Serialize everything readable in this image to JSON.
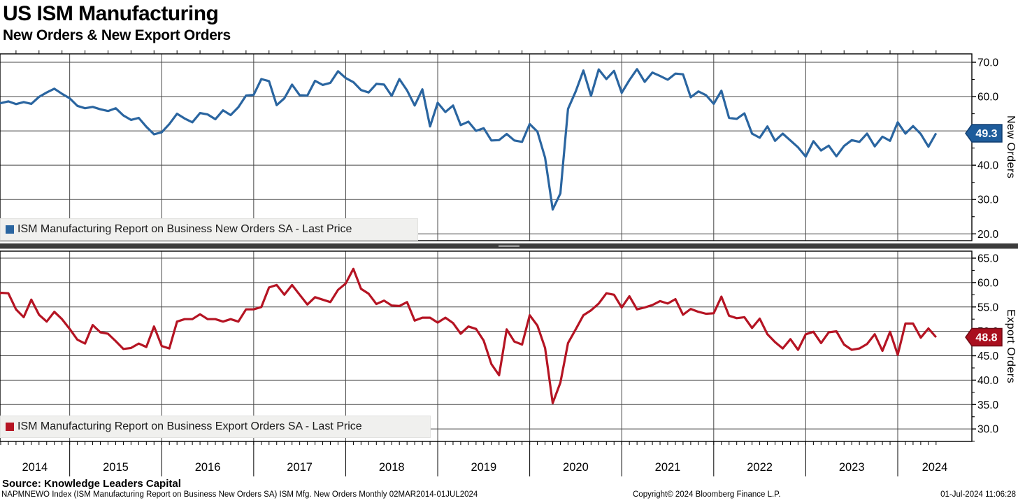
{
  "header": {
    "title": "US ISM Manufacturing",
    "subtitle": "New Orders & New Export Orders"
  },
  "x_axis": {
    "year_labels": [
      "2014",
      "2015",
      "2016",
      "2017",
      "2018",
      "2019",
      "2020",
      "2021",
      "2022",
      "2023",
      "2024"
    ]
  },
  "footer": {
    "source": "Source: Knowledge Leaders Capital",
    "security_info": "NAPMNEWO Index (ISM Manufacturing Report on Business New Orders SA) ISM Mfg. New Orders  Monthly 02MAR2014-01JUL2024",
    "copyright": "Copyright© 2024 Bloomberg Finance L.P.",
    "timestamp": "01-Jul-2024 11:06:28"
  },
  "chart_data": [
    {
      "type": "line",
      "name": "New Orders",
      "legend": "ISM Manufacturing Report on Business New Orders SA - Last Price",
      "axis_title": "New Orders",
      "color": "#2a65a0",
      "badge_color": "#1e5c9b",
      "badge_border": "#123f70",
      "last_price": 49.3,
      "last_price_label": "49.3",
      "frequency": "monthly",
      "x_start": "2014-03",
      "x_end": "2024-06",
      "ylim": [
        17.9,
        72.6
      ],
      "y_ticks": [
        "70.0",
        "60.0",
        "50.0",
        "40.0",
        "30.0",
        "20.0"
      ],
      "grid": true,
      "legend_position": "bottom-left-inset",
      "values": [
        58.9,
        58.1,
        58.6,
        57.8,
        58.4,
        57.9,
        59.9,
        61.2,
        62.3,
        60.8,
        59.5,
        57.3,
        56.6,
        57.0,
        56.3,
        55.8,
        56.6,
        54.5,
        53.2,
        53.8,
        51.2,
        49.0,
        49.6,
        52.0,
        55.0,
        53.6,
        52.5,
        55.2,
        54.8,
        53.4,
        56.0,
        54.6,
        56.9,
        60.3,
        60.5,
        65.1,
        64.5,
        57.5,
        59.5,
        63.5,
        60.4,
        60.3,
        64.6,
        63.4,
        64.0,
        67.4,
        65.4,
        64.2,
        61.9,
        61.2,
        63.7,
        63.5,
        60.2,
        65.1,
        61.8,
        57.4,
        62.1,
        51.3,
        58.2,
        55.5,
        57.4,
        51.7,
        52.7,
        50.0,
        50.8,
        47.2,
        47.3,
        49.1,
        47.2,
        46.8,
        52.0,
        49.8,
        42.2,
        27.1,
        31.8,
        56.4,
        61.5,
        67.6,
        60.2,
        67.9,
        65.1,
        67.5,
        61.1,
        64.8,
        68.0,
        64.3,
        67.0,
        66.0,
        64.9,
        66.7,
        66.5,
        59.8,
        61.5,
        60.4,
        57.9,
        61.7,
        53.8,
        53.5,
        55.1,
        49.2,
        48.0,
        51.3,
        47.1,
        49.2,
        47.2,
        45.2,
        42.5,
        47.0,
        44.3,
        45.7,
        42.6,
        45.6,
        47.3,
        46.8,
        49.2,
        45.5,
        48.3,
        47.1,
        52.5,
        49.2,
        51.4,
        49.1,
        45.4,
        49.3
      ]
    },
    {
      "type": "line",
      "name": "Export Orders",
      "legend": "ISM Manufacturing Report on Business Export Orders SA - Last Price",
      "axis_title": "Export Orders",
      "color": "#b51423",
      "badge_color": "#a90f1e",
      "badge_border": "#6f0a14",
      "last_price": 48.8,
      "last_price_label": "48.8",
      "frequency": "monthly",
      "x_start": "2014-03",
      "x_end": "2024-06",
      "ylim": [
        27.4,
        66.4
      ],
      "y_ticks": [
        "65.0",
        "60.0",
        "55.0",
        "50.0",
        "45.0",
        "40.0",
        "35.0",
        "30.0"
      ],
      "grid": true,
      "legend_position": "bottom-left-inset",
      "values": [
        56.0,
        57.9,
        57.8,
        54.5,
        52.9,
        56.5,
        53.4,
        52.0,
        54.0,
        52.5,
        50.5,
        48.3,
        47.5,
        51.3,
        49.8,
        49.5,
        48.0,
        46.4,
        46.6,
        47.5,
        46.8,
        51.0,
        47.0,
        46.5,
        52.0,
        52.5,
        52.5,
        53.5,
        52.5,
        52.5,
        52.0,
        52.5,
        52.0,
        54.5,
        54.5,
        55.0,
        59.0,
        59.5,
        57.5,
        59.5,
        57.5,
        55.5,
        57.0,
        56.5,
        56.0,
        58.5,
        59.8,
        62.8,
        58.7,
        57.7,
        55.6,
        56.3,
        55.3,
        55.2,
        56.0,
        52.2,
        52.8,
        52.8,
        51.8,
        52.8,
        51.7,
        49.5,
        51.0,
        50.5,
        48.1,
        43.3,
        41.0,
        50.4,
        47.9,
        47.3,
        53.3,
        51.2,
        46.6,
        35.3,
        39.5,
        47.6,
        50.4,
        53.3,
        54.3,
        55.7,
        57.8,
        57.5,
        54.9,
        57.2,
        54.5,
        54.9,
        55.4,
        56.2,
        55.7,
        56.6,
        53.4,
        54.6,
        54.0,
        53.6,
        53.7,
        57.1,
        53.2,
        52.7,
        52.9,
        50.7,
        52.6,
        49.4,
        47.8,
        46.5,
        48.4,
        46.2,
        49.4,
        49.9,
        47.6,
        49.8,
        50.0,
        47.3,
        46.2,
        46.5,
        47.4,
        49.4,
        46.0,
        49.9,
        45.2,
        51.6,
        51.6,
        48.7,
        50.6,
        48.8
      ]
    }
  ]
}
